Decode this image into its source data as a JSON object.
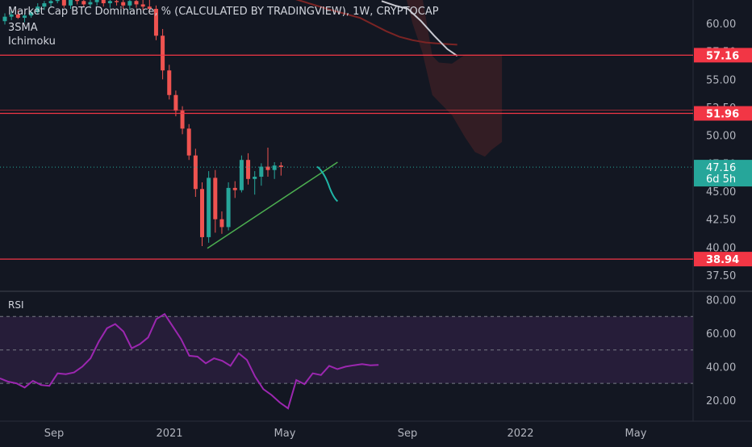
{
  "header": {
    "title": "Market Cap BTC Dominance, % (CALCULATED BY TRADINGVIEW), 1W, CRYPTOCAP",
    "indicator_1": "3SMA",
    "indicator_2": "Ichimoku"
  },
  "rsi_label": "RSI",
  "colors": {
    "background": "#131722",
    "up": "#26a69a",
    "down": "#ef5350",
    "level": "#f23645",
    "rsi_line": "#9c27b0",
    "rsi_band": "#2a1f3d",
    "trend_line": "#4caf50",
    "projection": "#1fb5a6",
    "sma_fast": "#c9c9d1",
    "sma_slow": "#7b2424",
    "cloud": "#3a1e24",
    "axis_text": "#b2b5be"
  },
  "chart_data": [
    {
      "type": "candlestick",
      "title": "Market Cap BTC Dominance, % (CALCULATED BY TRADINGVIEW), 1W, CRYPTOCAP",
      "ylim": [
        36.5,
        62.3
      ],
      "y_ticks": [
        37.5,
        40,
        42.5,
        45,
        47.5,
        50,
        52.5,
        55,
        57.5,
        60
      ],
      "x_ticks": [
        "Sep",
        "2021",
        "May",
        "Sep",
        "2022",
        "May"
      ],
      "horizontal_levels": [
        57.16,
        51.96,
        38.94
      ],
      "last_price": 47.16,
      "countdown": "6d 5h",
      "candles": [
        [
          60.2,
          60.9,
          59.9,
          60.6
        ],
        [
          60.6,
          61.1,
          60.3,
          60.8
        ],
        [
          60.8,
          61.2,
          60.4,
          60.5
        ],
        [
          60.5,
          60.9,
          60.1,
          60.7
        ],
        [
          60.7,
          61.2,
          60.5,
          61.0
        ],
        [
          61.0,
          61.8,
          60.8,
          61.5
        ],
        [
          61.5,
          62.0,
          61.2,
          61.8
        ],
        [
          61.8,
          62.3,
          61.5,
          62.0
        ],
        [
          62.0,
          62.3,
          61.8,
          62.2
        ],
        [
          62.2,
          62.3,
          61.4,
          61.6
        ],
        [
          61.6,
          62.3,
          61.3,
          62.1
        ],
        [
          62.1,
          62.3,
          61.7,
          62.0
        ],
        [
          62.0,
          62.3,
          61.5,
          61.7
        ],
        [
          61.7,
          62.3,
          61.4,
          61.9
        ],
        [
          61.9,
          62.3,
          61.6,
          62.1
        ],
        [
          62.1,
          62.3,
          61.5,
          61.8
        ],
        [
          61.8,
          62.3,
          61.4,
          62.0
        ],
        [
          62.0,
          62.3,
          61.6,
          61.9
        ],
        [
          61.9,
          62.3,
          61.3,
          61.6
        ],
        [
          61.6,
          62.3,
          61.2,
          62.0
        ],
        [
          62.0,
          62.3,
          61.4,
          61.7
        ],
        [
          61.7,
          62.3,
          61.2,
          61.5
        ],
        [
          61.5,
          62.3,
          61.0,
          61.3
        ],
        [
          61.3,
          61.6,
          58.5,
          58.9
        ],
        [
          58.9,
          59.5,
          55.0,
          55.8
        ],
        [
          55.8,
          56.3,
          53.2,
          53.6
        ],
        [
          53.6,
          54.0,
          51.7,
          52.2
        ],
        [
          52.2,
          52.6,
          50.1,
          50.6
        ],
        [
          50.6,
          51.0,
          47.8,
          48.2
        ],
        [
          48.2,
          48.8,
          44.5,
          45.2
        ],
        [
          45.2,
          45.8,
          40.1,
          40.9
        ],
        [
          40.9,
          46.8,
          40.4,
          46.2
        ],
        [
          46.2,
          46.9,
          41.3,
          42.5
        ],
        [
          42.5,
          43.2,
          41.2,
          41.8
        ],
        [
          41.8,
          45.8,
          41.5,
          45.3
        ],
        [
          45.3,
          45.9,
          44.4,
          45.1
        ],
        [
          45.1,
          48.2,
          44.9,
          47.8
        ],
        [
          47.8,
          48.4,
          45.6,
          46.1
        ],
        [
          46.1,
          46.8,
          44.7,
          46.3
        ],
        [
          46.3,
          47.5,
          45.5,
          47.2
        ],
        [
          47.2,
          48.9,
          46.3,
          46.9
        ],
        [
          46.9,
          47.6,
          46.1,
          47.3
        ],
        [
          47.3,
          47.6,
          46.4,
          47.16
        ]
      ],
      "sma_fast": [
        [
          57.3,
          62.0
        ],
        [
          59.3,
          61.6
        ],
        [
          61.3,
          61.3
        ],
        [
          63.3,
          60.2
        ],
        [
          65.3,
          58.9
        ],
        [
          67.3,
          57.7
        ],
        [
          68.8,
          57.1
        ]
      ],
      "sma_slow": [
        [
          44.0,
          62.2
        ],
        [
          49.0,
          61.3
        ],
        [
          54.0,
          60.5
        ],
        [
          56.0,
          59.9
        ],
        [
          58.0,
          59.3
        ],
        [
          60.0,
          58.8
        ],
        [
          62.0,
          58.5
        ],
        [
          64.0,
          58.3
        ],
        [
          66.0,
          58.2
        ],
        [
          68.8,
          58.1
        ]
      ],
      "ichimoku_cloud": [
        [
          61.0,
          62.3,
          62.3
        ],
        [
          62.0,
          62.3,
          60.0
        ],
        [
          63.5,
          62.3,
          57.4
        ],
        [
          65.0,
          57.1,
          53.6
        ],
        [
          66.0,
          56.5,
          53.0
        ],
        [
          68.0,
          56.4,
          51.8
        ],
        [
          70.0,
          57.2,
          49.8
        ],
        [
          71.5,
          57.2,
          48.5
        ],
        [
          73.0,
          57.2,
          48.1
        ],
        [
          74.0,
          57.2,
          48.7
        ],
        [
          75.6,
          57.2,
          49.4
        ]
      ],
      "trend_line": [
        [
          30.8,
          39.9
        ],
        [
          50.6,
          47.6
        ]
      ],
      "projection": [
        [
          47.5,
          47.2
        ],
        [
          48.6,
          46.7
        ],
        [
          49.4,
          45.3
        ],
        [
          50.0,
          44.4
        ],
        [
          50.6,
          44.1
        ]
      ]
    },
    {
      "type": "line",
      "title": "RSI",
      "ylim": [
        12.0,
        81.5
      ],
      "y_ticks": [
        20,
        40,
        60,
        80
      ],
      "bands": [
        30,
        50,
        70
      ],
      "series": [
        {
          "values": [
            [
              0,
              33.0
            ],
            [
              1,
              31.0
            ],
            [
              2,
              30.0
            ],
            [
              3,
              27.5
            ],
            [
              4,
              31.5
            ],
            [
              5,
              29.0
            ],
            [
              6,
              28.5
            ],
            [
              7,
              36.0
            ],
            [
              8,
              35.5
            ],
            [
              9,
              36.5
            ],
            [
              10,
              40.0
            ],
            [
              11,
              45.0
            ],
            [
              12,
              55.0
            ],
            [
              13,
              63.0
            ],
            [
              14,
              65.5
            ],
            [
              15,
              61.0
            ],
            [
              16,
              51.0
            ],
            [
              17,
              53.5
            ],
            [
              18,
              57.5
            ],
            [
              19,
              68.5
            ],
            [
              20,
              71.5
            ],
            [
              21,
              64.0
            ],
            [
              22,
              56.5
            ],
            [
              23,
              46.5
            ],
            [
              24,
              46.0
            ],
            [
              25,
              42.0
            ],
            [
              26,
              45.0
            ],
            [
              27,
              43.5
            ],
            [
              28,
              40.5
            ],
            [
              29,
              48.0
            ],
            [
              30,
              44.0
            ],
            [
              31,
              34.0
            ],
            [
              32,
              26.5
            ],
            [
              33,
              23.0
            ],
            [
              34,
              18.5
            ],
            [
              35,
              15.0
            ],
            [
              36,
              32.0
            ],
            [
              37,
              29.5
            ],
            [
              38,
              36.0
            ],
            [
              39,
              35.0
            ],
            [
              40,
              40.5
            ],
            [
              41,
              38.5
            ],
            [
              42,
              40.0
            ],
            [
              43,
              40.8
            ],
            [
              44,
              41.5
            ],
            [
              45,
              40.8
            ],
            [
              46,
              41.0
            ]
          ]
        }
      ]
    }
  ]
}
